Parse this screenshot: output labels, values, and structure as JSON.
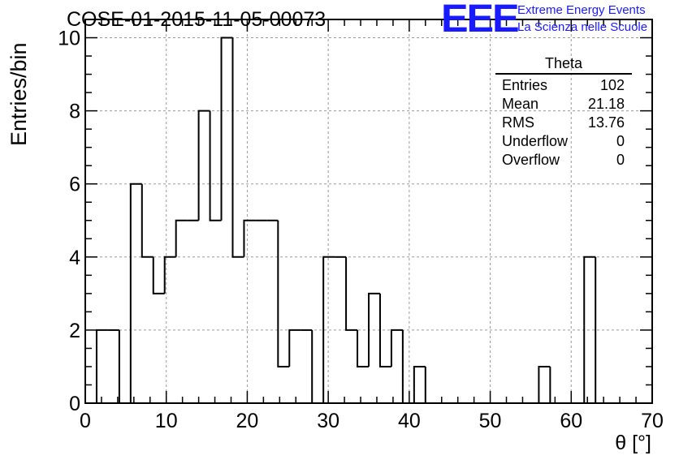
{
  "header": {
    "title": "COSE-01-2015-11-05-00073",
    "logo": "EEE",
    "brand_line1": "Extreme Energy Events",
    "brand_line2": "La Scienza nelle Scuole",
    "brand_color": "#1a1aff"
  },
  "stats_box": {
    "title": "Theta",
    "rows": [
      {
        "label": "Entries",
        "value": "102"
      },
      {
        "label": "Mean",
        "value": "21.18"
      },
      {
        "label": "RMS",
        "value": "13.76"
      },
      {
        "label": "Underflow",
        "value": "0"
      },
      {
        "label": "Overflow",
        "value": "0"
      }
    ]
  },
  "chart_data": {
    "type": "bar",
    "histogram_style": "step",
    "xlabel": "θ [°]",
    "ylabel": "Entries/bin",
    "xlim": [
      0,
      70
    ],
    "ylim": [
      0,
      10.5
    ],
    "x_ticks": [
      "0",
      "10",
      "20",
      "30",
      "40",
      "50",
      "60",
      "70"
    ],
    "y_ticks": [
      "0",
      "2",
      "4",
      "6",
      "8",
      "10"
    ],
    "grid": true,
    "bin_width": 1.4,
    "bins_start": 1.4,
    "values": [
      2,
      2,
      0,
      6,
      4,
      3,
      4,
      5,
      5,
      8,
      5,
      10,
      4,
      5,
      5,
      5,
      1,
      2,
      2,
      0,
      4,
      4,
      2,
      1,
      3,
      1,
      2,
      0,
      1,
      0,
      0,
      0,
      0,
      0,
      0,
      0,
      0,
      0,
      0,
      1,
      0,
      0,
      0,
      4,
      0
    ]
  }
}
